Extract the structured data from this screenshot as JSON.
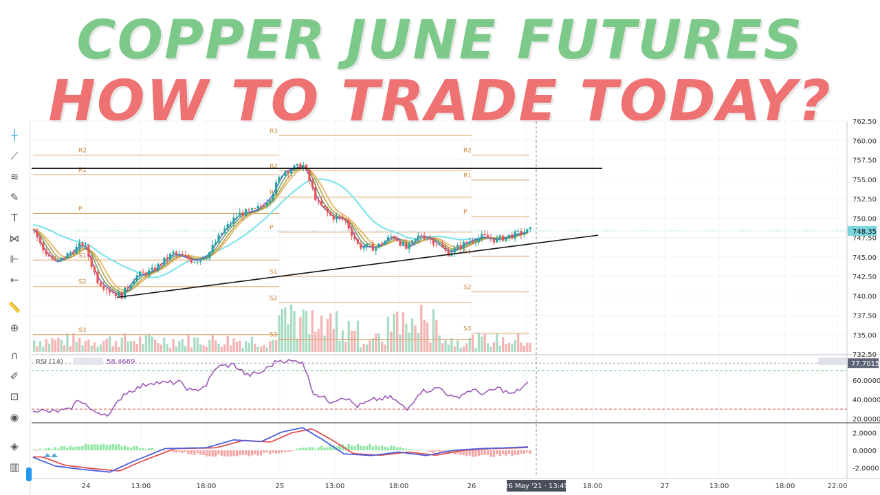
{
  "headline": {
    "line1": "COPPER JUNE FUTURES",
    "line2": "HOW TO TRADE TODAY?",
    "colors": {
      "line1": "#7dc98a",
      "line2": "#ee7272"
    }
  },
  "toolbar": {
    "icons": [
      "crosshair-icon",
      "trend-line-icon",
      "fib-tools-icon",
      "brush-icon",
      "text-icon",
      "pattern-icon",
      "measure-icon",
      "back-arrow-icon",
      "ruler-icon",
      "zoom-icon",
      "magnet-icon",
      "lock-drawing-icon",
      "lock-icon",
      "eye-icon",
      "layers-icon",
      "trash-icon"
    ]
  },
  "chart_data": {
    "type": "candlestick",
    "price_axis": {
      "ticks": [
        "762.50",
        "760.00",
        "757.50",
        "755.00",
        "752.50",
        "750.00",
        "747.50",
        "745.00",
        "742.50",
        "740.00",
        "737.50",
        "735.00",
        "732.50"
      ],
      "last_price": "748.35",
      "range": [
        732.5,
        762.5
      ]
    },
    "time_axis": {
      "ticks": [
        "24",
        "13:00",
        "18:00",
        "25",
        "13:00",
        "18:00",
        "26",
        "13:00",
        "18:00",
        "27",
        "13:00",
        "18:00",
        "22:00"
      ],
      "crosshair_label": "26 May '21 · 13:45"
    },
    "pivot_levels": [
      {
        "label": "R2",
        "value": 758.1,
        "session": 1
      },
      {
        "label": "R1",
        "value": 755.6,
        "session": 1
      },
      {
        "label": "P",
        "value": 750.6,
        "session": 1
      },
      {
        "label": "S1",
        "value": 744.6,
        "session": 1
      },
      {
        "label": "S2",
        "value": 741.2,
        "session": 1
      },
      {
        "label": "S3",
        "value": 735.0,
        "session": 1
      },
      {
        "label": "R3",
        "value": 760.6,
        "session": 2
      },
      {
        "label": "R2",
        "value": 756.1,
        "session": 2
      },
      {
        "label": "R1",
        "value": 752.7,
        "session": 2
      },
      {
        "label": "P",
        "value": 748.2,
        "session": 2
      },
      {
        "label": "S1",
        "value": 742.5,
        "session": 2
      },
      {
        "label": "S2",
        "value": 739.1,
        "session": 2
      },
      {
        "label": "S3",
        "value": 734.4,
        "session": 2
      },
      {
        "label": "R2",
        "value": 758.1,
        "session": 3
      },
      {
        "label": "R1",
        "value": 754.9,
        "session": 3
      },
      {
        "label": "P",
        "value": 750.2,
        "session": 3
      },
      {
        "label": "S1",
        "value": 745.1,
        "session": 3
      },
      {
        "label": "S2",
        "value": 740.5,
        "session": 3
      },
      {
        "label": "S3",
        "value": 735.2,
        "session": 3
      }
    ],
    "rsi": {
      "label": "RSI (14)",
      "value": "58.4669",
      "axis_ticks": [
        "77.7015",
        "60.0000",
        "40.0000",
        "20.0000"
      ],
      "upper_band": 70,
      "lower_band": 30,
      "range": [
        18,
        85
      ]
    },
    "macd": {
      "axis_ticks": [
        "2.0000",
        "0.0000",
        "-2.0000"
      ],
      "range": [
        -3,
        3
      ]
    }
  }
}
